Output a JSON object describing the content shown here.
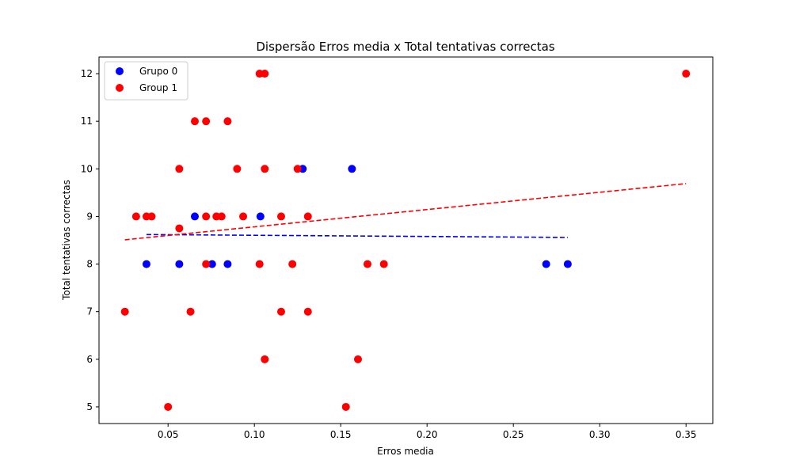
{
  "chart_data": {
    "type": "scatter",
    "title": "Dispersão Erros media x Total tentativas correctas",
    "xlabel": "Erros media",
    "ylabel": "Total tentativas correctas",
    "xlim": [
      0.01,
      0.3655
    ],
    "ylim": [
      4.65,
      12.35
    ],
    "xticks": [
      0.05,
      0.1,
      0.15,
      0.2,
      0.25,
      0.3,
      0.35
    ],
    "xtick_labels": [
      "0.05",
      "0.10",
      "0.15",
      "0.20",
      "0.25",
      "0.30",
      "0.35"
    ],
    "yticks": [
      5,
      6,
      7,
      8,
      9,
      10,
      11,
      12
    ],
    "ytick_labels": [
      "5",
      "6",
      "7",
      "8",
      "9",
      "10",
      "11",
      "12"
    ],
    "legend_position": "top-left",
    "grid": false,
    "series": [
      {
        "name": "Grupo 0",
        "color": "#0000ff",
        "points": [
          {
            "x": 0.0375,
            "y": 8
          },
          {
            "x": 0.0565,
            "y": 8
          },
          {
            "x": 0.0655,
            "y": 9
          },
          {
            "x": 0.0755,
            "y": 8
          },
          {
            "x": 0.0845,
            "y": 8
          },
          {
            "x": 0.1035,
            "y": 9
          },
          {
            "x": 0.128,
            "y": 10
          },
          {
            "x": 0.1565,
            "y": 10
          },
          {
            "x": 0.269,
            "y": 8
          },
          {
            "x": 0.2815,
            "y": 8
          }
        ],
        "trend": {
          "x1": 0.0375,
          "y1": 8.62,
          "x2": 0.2815,
          "y2": 8.56
        }
      },
      {
        "name": "Group 1",
        "color": "#ff0000",
        "points": [
          {
            "x": 0.025,
            "y": 7
          },
          {
            "x": 0.0315,
            "y": 9
          },
          {
            "x": 0.0375,
            "y": 9
          },
          {
            "x": 0.0405,
            "y": 9
          },
          {
            "x": 0.05,
            "y": 5
          },
          {
            "x": 0.0565,
            "y": 10
          },
          {
            "x": 0.0565,
            "y": 8.75
          },
          {
            "x": 0.063,
            "y": 7
          },
          {
            "x": 0.0655,
            "y": 11
          },
          {
            "x": 0.072,
            "y": 11
          },
          {
            "x": 0.072,
            "y": 9
          },
          {
            "x": 0.072,
            "y": 8
          },
          {
            "x": 0.078,
            "y": 9
          },
          {
            "x": 0.081,
            "y": 9
          },
          {
            "x": 0.0845,
            "y": 11
          },
          {
            "x": 0.09,
            "y": 10
          },
          {
            "x": 0.0935,
            "y": 9
          },
          {
            "x": 0.103,
            "y": 12
          },
          {
            "x": 0.103,
            "y": 8
          },
          {
            "x": 0.106,
            "y": 12
          },
          {
            "x": 0.106,
            "y": 10
          },
          {
            "x": 0.106,
            "y": 6
          },
          {
            "x": 0.1155,
            "y": 9
          },
          {
            "x": 0.1155,
            "y": 7
          },
          {
            "x": 0.122,
            "y": 8
          },
          {
            "x": 0.125,
            "y": 10
          },
          {
            "x": 0.131,
            "y": 9
          },
          {
            "x": 0.131,
            "y": 7
          },
          {
            "x": 0.153,
            "y": 5
          },
          {
            "x": 0.16,
            "y": 6
          },
          {
            "x": 0.1655,
            "y": 8
          },
          {
            "x": 0.175,
            "y": 8
          },
          {
            "x": 0.35,
            "y": 12
          }
        ],
        "trend": {
          "x1": 0.025,
          "y1": 8.51,
          "x2": 0.35,
          "y2": 9.69
        }
      }
    ]
  }
}
